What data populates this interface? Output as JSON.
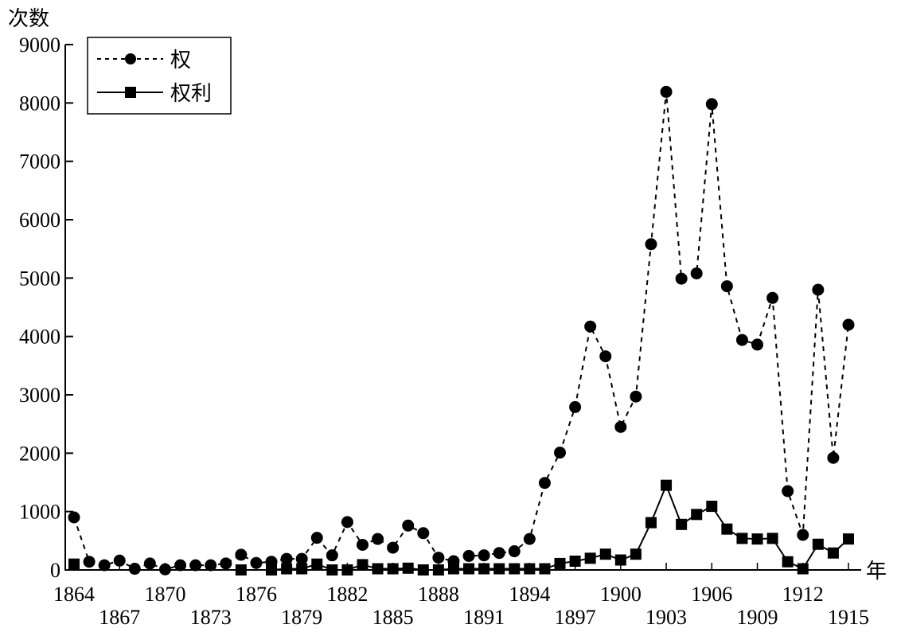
{
  "chart_data": {
    "type": "line",
    "title": "",
    "xlabel": "年",
    "ylabel": "次数",
    "ylim": [
      0,
      9000
    ],
    "xlim": [
      1864,
      1915
    ],
    "yticks": [
      0,
      1000,
      2000,
      3000,
      4000,
      5000,
      6000,
      7000,
      8000,
      9000
    ],
    "xticks_row1": [
      1864,
      1870,
      1876,
      1882,
      1888,
      1894,
      1900,
      1906,
      1912
    ],
    "xticks_row2": [
      1867,
      1873,
      1879,
      1885,
      1891,
      1897,
      1903,
      1909,
      1915
    ],
    "legend_position": "top-left",
    "x": [
      1864,
      1865,
      1866,
      1867,
      1868,
      1869,
      1870,
      1871,
      1872,
      1873,
      1874,
      1875,
      1876,
      1877,
      1878,
      1879,
      1880,
      1881,
      1882,
      1883,
      1884,
      1885,
      1886,
      1887,
      1888,
      1889,
      1890,
      1891,
      1892,
      1893,
      1894,
      1895,
      1896,
      1897,
      1898,
      1899,
      1900,
      1901,
      1902,
      1903,
      1904,
      1905,
      1906,
      1907,
      1908,
      1909,
      1910,
      1911,
      1912,
      1913,
      1914,
      1915
    ],
    "series": [
      {
        "name": "权",
        "style": "dashed-circle",
        "values": [
          900,
          140,
          80,
          160,
          20,
          110,
          10,
          80,
          80,
          80,
          110,
          260,
          120,
          140,
          190,
          190,
          550,
          250,
          820,
          430,
          530,
          380,
          760,
          630,
          210,
          150,
          240,
          250,
          290,
          320,
          530,
          1490,
          2010,
          2790,
          4170,
          3660,
          2450,
          2970,
          5580,
          8190,
          4990,
          5080,
          7980,
          4860,
          3940,
          3860,
          4660,
          1350,
          600,
          4800,
          1920,
          4200
        ]
      },
      {
        "name": "权利",
        "style": "solid-square",
        "values": [
          100,
          null,
          null,
          null,
          null,
          null,
          null,
          null,
          null,
          null,
          null,
          0,
          null,
          0,
          20,
          20,
          100,
          0,
          0,
          90,
          20,
          20,
          30,
          0,
          0,
          20,
          20,
          20,
          20,
          20,
          20,
          20,
          110,
          150,
          200,
          270,
          170,
          270,
          810,
          1450,
          780,
          950,
          1090,
          700,
          540,
          530,
          540,
          140,
          20,
          440,
          290,
          530
        ]
      }
    ]
  }
}
